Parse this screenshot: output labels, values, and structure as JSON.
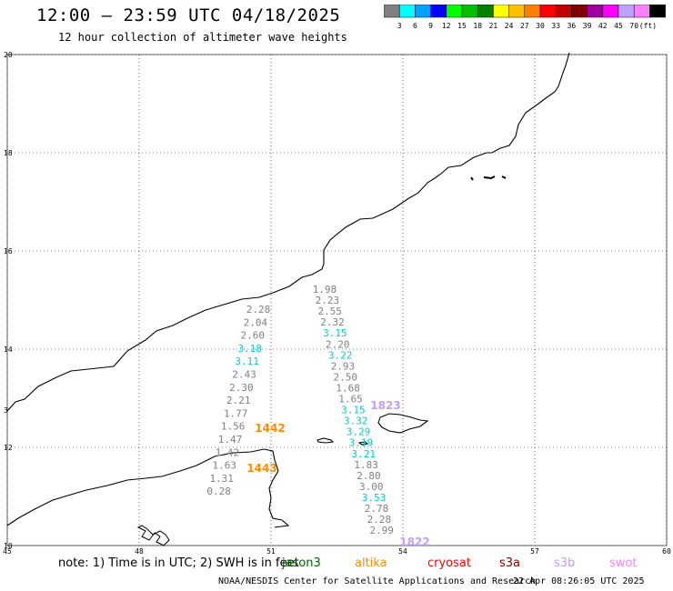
{
  "title": "12:00 – 23:59 UTC 04/18/2025",
  "subtitle": "12 hour collection of altimeter wave heights",
  "scale": {
    "colors": [
      "#808080",
      "#00ffff",
      "#00a0ff",
      "#0000ff",
      "#00ff00",
      "#00c000",
      "#008000",
      "#ffff00",
      "#ffc000",
      "#ff8000",
      "#ff0000",
      "#c00000",
      "#800000",
      "#a000a0",
      "#ff00ff",
      "#c0a0ff",
      "#ff80ff",
      "#000000"
    ],
    "labels": [
      "3",
      "6",
      "9",
      "12",
      "15",
      "18",
      "21",
      "24",
      "27",
      "30",
      "33",
      "36",
      "39",
      "42",
      "45",
      "70",
      "(ft)"
    ]
  },
  "map": {
    "lat_labels": [
      "20",
      "18",
      "16",
      "14",
      "12",
      "10"
    ],
    "lat_values": [
      20,
      18,
      16,
      14,
      12,
      10
    ],
    "lon_labels": [
      "45",
      "48",
      "51",
      "54",
      "57",
      "60"
    ],
    "lon_values": [
      45,
      48,
      51,
      54,
      57,
      60
    ],
    "edge_label": "3"
  },
  "passes": {
    "altika": {
      "color": "#ff8c00",
      "labels": [
        "1442",
        "1443"
      ]
    },
    "s3b": {
      "color": "#c0a0ff",
      "labels": [
        "1823",
        "1822"
      ]
    }
  },
  "tracks": [
    {
      "name": "altika-1442",
      "color_set": [
        {
          "v": "2.28",
          "c": "#808080"
        },
        {
          "v": "2.04",
          "c": "#808080"
        },
        {
          "v": "2.60",
          "c": "#808080"
        },
        {
          "v": "3.18",
          "c": "#00ced1"
        },
        {
          "v": "3.11",
          "c": "#00ced1"
        },
        {
          "v": "2.43",
          "c": "#808080"
        },
        {
          "v": "2.30",
          "c": "#808080"
        },
        {
          "v": "2.21",
          "c": "#808080"
        },
        {
          "v": "1.77",
          "c": "#808080"
        },
        {
          "v": "1.56",
          "c": "#808080"
        },
        {
          "v": "1.47",
          "c": "#808080"
        },
        {
          "v": "1.42",
          "c": "#808080"
        },
        {
          "v": "1.63",
          "c": "#808080"
        },
        {
          "v": "1.31",
          "c": "#808080"
        },
        {
          "v": "0.28",
          "c": "#808080"
        }
      ]
    },
    {
      "name": "s3b-1823",
      "color_set": [
        {
          "v": "1.98",
          "c": "#808080"
        },
        {
          "v": "2.23",
          "c": "#808080"
        },
        {
          "v": "2.55",
          "c": "#808080"
        },
        {
          "v": "2.32",
          "c": "#808080"
        },
        {
          "v": "3.15",
          "c": "#00ced1"
        },
        {
          "v": "2.20",
          "c": "#808080"
        },
        {
          "v": "3.22",
          "c": "#00ced1"
        },
        {
          "v": "2.93",
          "c": "#808080"
        },
        {
          "v": "2.50",
          "c": "#808080"
        },
        {
          "v": "1.68",
          "c": "#808080"
        },
        {
          "v": "1.65",
          "c": "#808080"
        },
        {
          "v": "3.15",
          "c": "#00ced1"
        },
        {
          "v": "3.32",
          "c": "#00ced1"
        },
        {
          "v": "3.29",
          "c": "#00ced1"
        },
        {
          "v": "3.19",
          "c": "#00ced1"
        },
        {
          "v": "3.21",
          "c": "#00ced1"
        },
        {
          "v": "1.83",
          "c": "#808080"
        },
        {
          "v": "2.80",
          "c": "#808080"
        },
        {
          "v": "3.00",
          "c": "#808080"
        },
        {
          "v": "3.53",
          "c": "#00ced1"
        },
        {
          "v": "2.78",
          "c": "#808080"
        },
        {
          "v": "2.28",
          "c": "#808080"
        },
        {
          "v": "2.99",
          "c": "#808080"
        }
      ]
    }
  ],
  "footer": {
    "note": "note: 1) Time is in UTC; 2) SWH is in feet",
    "satellites": [
      {
        "name": "jason3",
        "color": "#006400"
      },
      {
        "name": "altika",
        "color": "#ff8c00"
      },
      {
        "name": "cryosat",
        "color": "#ff0000"
      },
      {
        "name": "s3a",
        "color": "#8b0000"
      },
      {
        "name": "s3b",
        "color": "#c0a0ff"
      },
      {
        "name": "swot",
        "color": "#ff80ff"
      }
    ],
    "credit": "NOAA/NESDIS Center for Satellite Applications and Research",
    "timestamp": "22 Apr 08:26:05 UTC 2025"
  }
}
